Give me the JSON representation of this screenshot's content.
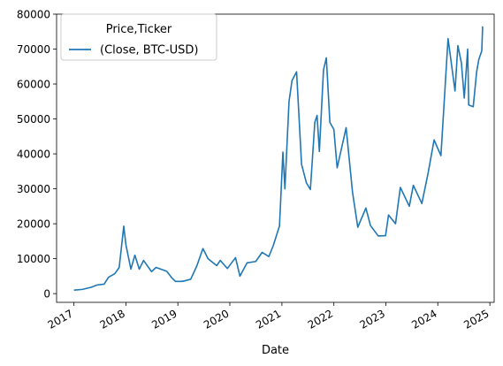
{
  "chart_data": {
    "type": "line",
    "title": "",
    "xlabel": "Date",
    "ylabel": "",
    "x_axis_type": "date",
    "xlim": [
      "2016-09-01",
      "2025-01-31"
    ],
    "ylim": [
      -2500,
      80000
    ],
    "x_ticks": [
      {
        "date": "2017-01-01",
        "label": "2017"
      },
      {
        "date": "2018-01-01",
        "label": "2018"
      },
      {
        "date": "2019-01-01",
        "label": "2019"
      },
      {
        "date": "2020-01-01",
        "label": "2020"
      },
      {
        "date": "2021-01-01",
        "label": "2021"
      },
      {
        "date": "2022-01-01",
        "label": "2022"
      },
      {
        "date": "2023-01-01",
        "label": "2023"
      },
      {
        "date": "2024-01-01",
        "label": "2024"
      },
      {
        "date": "2025-01-01",
        "label": "2025"
      }
    ],
    "y_ticks": [
      {
        "value": 0,
        "label": "0"
      },
      {
        "value": 10000,
        "label": "10000"
      },
      {
        "value": 20000,
        "label": "20000"
      },
      {
        "value": 30000,
        "label": "30000"
      },
      {
        "value": 40000,
        "label": "40000"
      },
      {
        "value": 50000,
        "label": "50000"
      },
      {
        "value": 60000,
        "label": "60000"
      },
      {
        "value": 70000,
        "label": "70000"
      },
      {
        "value": 80000,
        "label": "80000"
      }
    ],
    "grid": false,
    "legend": {
      "title": "Price,Ticker",
      "placement": "top-left"
    },
    "series": [
      {
        "name": "(Close, BTC-USD)",
        "color": "#1f77b4",
        "x": [
          "2017-01-01",
          "2017-03-01",
          "2017-05-01",
          "2017-06-15",
          "2017-08-01",
          "2017-09-01",
          "2017-10-15",
          "2017-11-15",
          "2017-12-17",
          "2018-01-01",
          "2018-02-05",
          "2018-03-05",
          "2018-04-05",
          "2018-05-05",
          "2018-06-30",
          "2018-08-01",
          "2018-10-15",
          "2018-11-20",
          "2018-12-15",
          "2019-02-01",
          "2019-04-01",
          "2019-05-15",
          "2019-06-26",
          "2019-08-01",
          "2019-10-01",
          "2019-10-26",
          "2019-12-15",
          "2020-02-10",
          "2020-03-12",
          "2020-05-01",
          "2020-07-01",
          "2020-08-15",
          "2020-10-01",
          "2020-11-01",
          "2020-12-15",
          "2021-01-08",
          "2021-01-22",
          "2021-02-20",
          "2021-03-13",
          "2021-04-14",
          "2021-05-19",
          "2021-06-22",
          "2021-07-20",
          "2021-08-20",
          "2021-09-05",
          "2021-09-21",
          "2021-10-20",
          "2021-11-09",
          "2021-12-04",
          "2022-01-01",
          "2022-01-24",
          "2022-03-28",
          "2022-05-12",
          "2022-06-18",
          "2022-08-14",
          "2022-09-15",
          "2022-11-09",
          "2022-12-30",
          "2023-01-20",
          "2023-03-10",
          "2023-04-13",
          "2023-06-15",
          "2023-07-13",
          "2023-09-11",
          "2023-10-25",
          "2023-12-06",
          "2024-01-23",
          "2024-03-13",
          "2024-05-01",
          "2024-05-21",
          "2024-06-15",
          "2024-07-05",
          "2024-07-29",
          "2024-08-05",
          "2024-09-06",
          "2024-09-30",
          "2024-10-15",
          "2024-11-05",
          "2024-11-11"
        ],
        "y": [
          1000,
          1200,
          1800,
          2500,
          2700,
          4700,
          5700,
          7500,
          19300,
          14000,
          7000,
          11000,
          7000,
          9500,
          6300,
          7500,
          6400,
          4500,
          3500,
          3500,
          4100,
          8000,
          12900,
          10000,
          8000,
          9500,
          7200,
          10300,
          5000,
          8800,
          9200,
          11800,
          10600,
          13700,
          19400,
          40500,
          30000,
          55000,
          61000,
          63500,
          37000,
          31700,
          29800,
          49000,
          51000,
          40700,
          64000,
          67500,
          49000,
          47000,
          36000,
          47500,
          29000,
          19000,
          24500,
          19500,
          16500,
          16600,
          22500,
          20000,
          30400,
          25000,
          31000,
          25800,
          34500,
          44000,
          39500,
          73000,
          58000,
          71000,
          66000,
          56000,
          70000,
          54000,
          53500,
          63500,
          67000,
          69500,
          76500
        ]
      }
    ]
  }
}
